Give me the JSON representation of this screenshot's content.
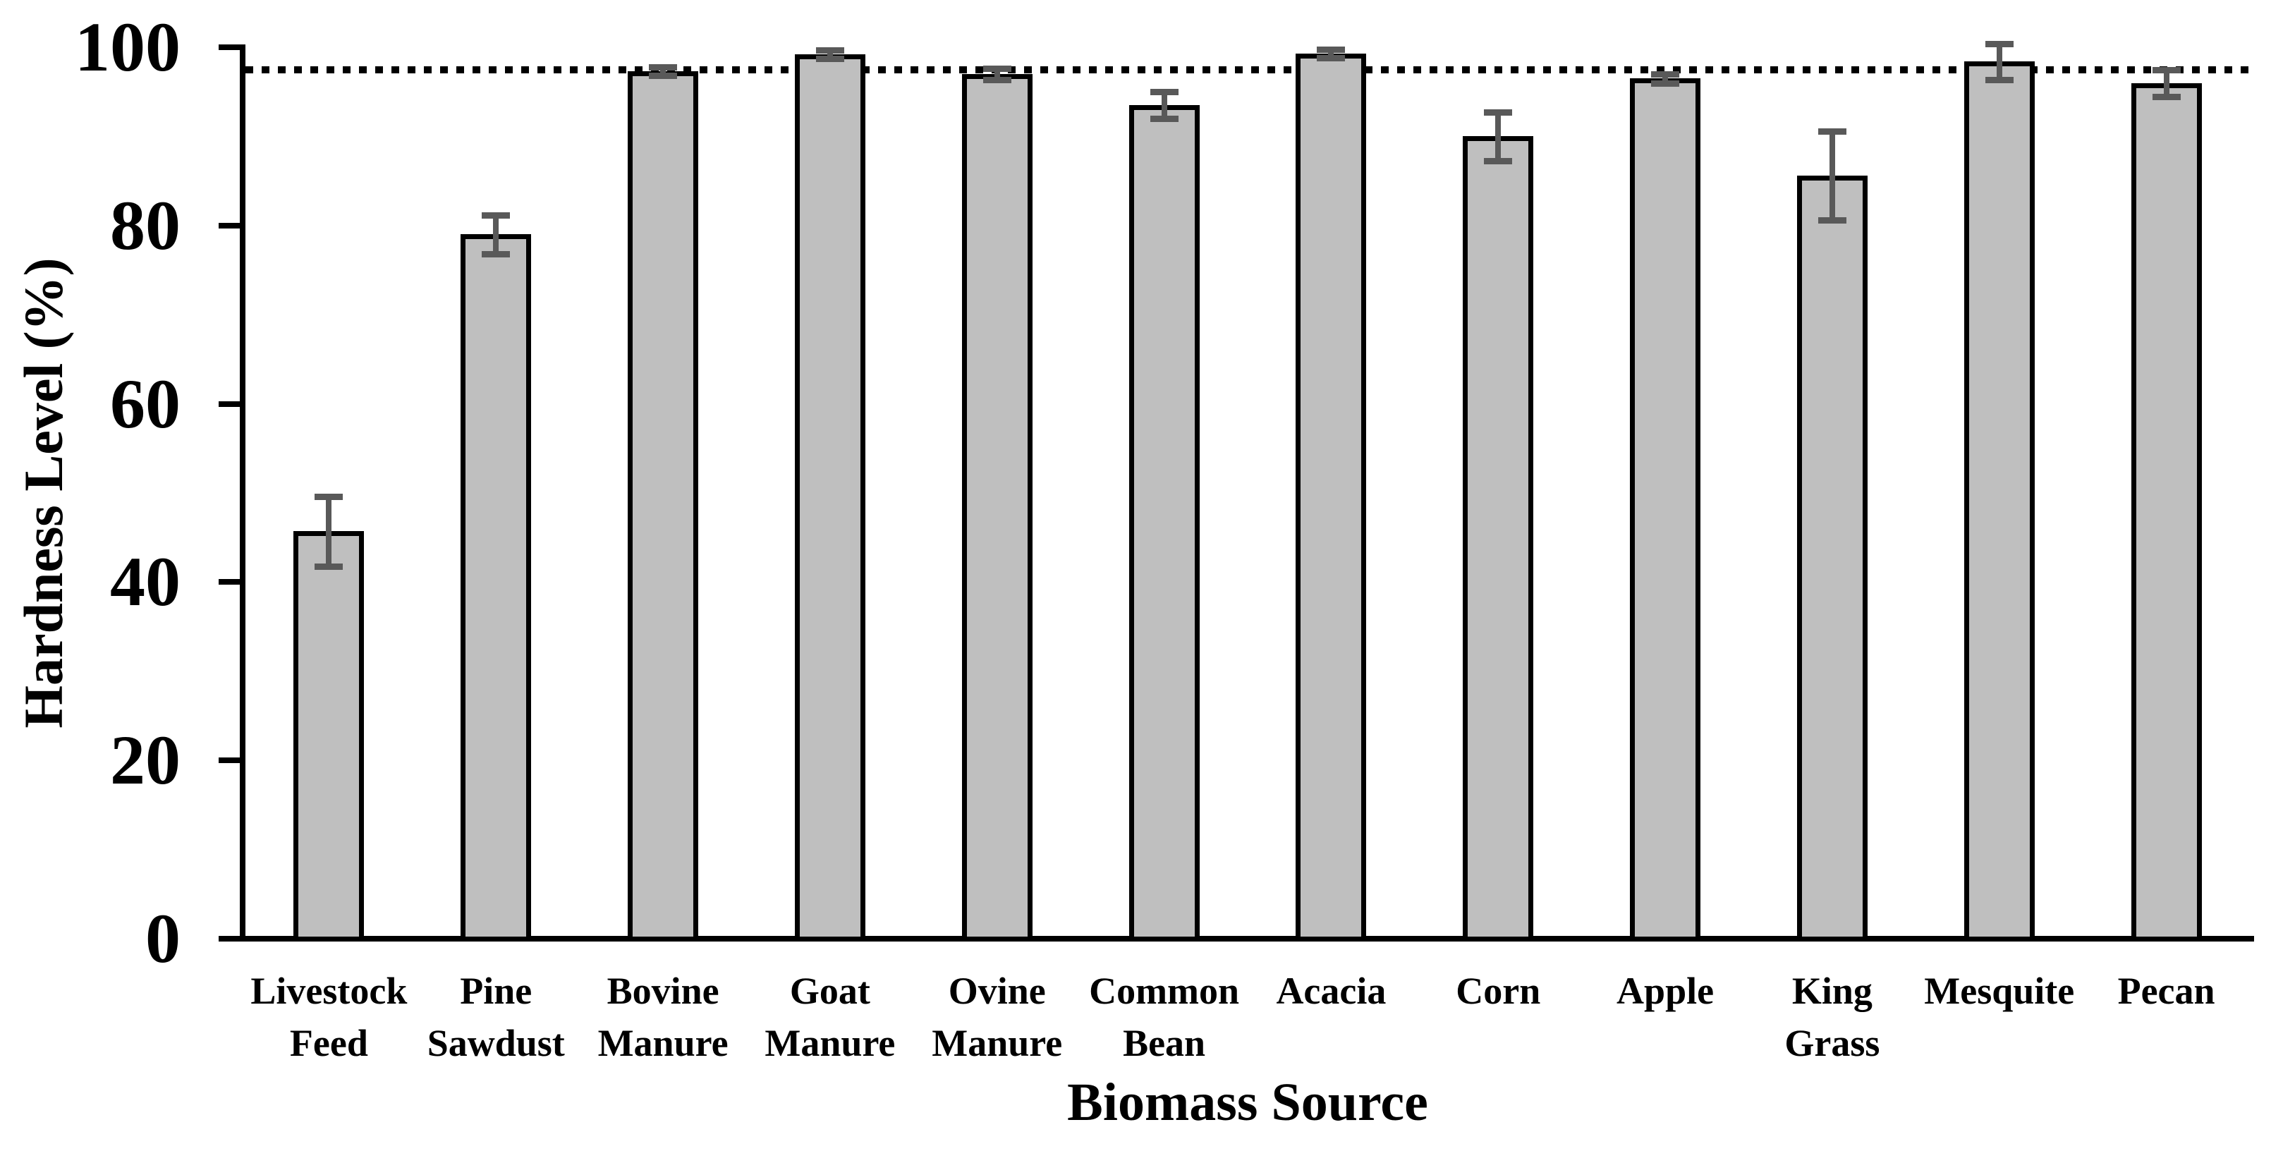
{
  "chart_data": {
    "type": "bar",
    "title": "",
    "xlabel": "Biomass Source",
    "ylabel": "Hardness Level (%)",
    "ylim": [
      0,
      100
    ],
    "yticks": [
      0,
      20,
      40,
      60,
      80,
      100
    ],
    "grid": false,
    "legend": null,
    "categories": [
      "Livestock Feed",
      "Pine Sawdust",
      "Bovine Manure",
      "Goat Manure",
      "Ovine Manure",
      "Common Bean",
      "Acacia",
      "Corn",
      "Apple",
      "King Grass",
      "Mesquite",
      "Pecan"
    ],
    "category_labels": [
      "Livestock\nFeed",
      "Pine\nSawdust",
      "Bovine\nManure",
      "Goat\nManure",
      "Ovine\nManure",
      "Common\nBean",
      "Acacia",
      "Corn",
      "Apple",
      "King\nGrass",
      "Mesquite",
      "Pecan"
    ],
    "values": [
      45.7,
      79.0,
      97.3,
      99.2,
      97.0,
      93.5,
      99.3,
      90.0,
      96.5,
      85.6,
      98.4,
      96.0
    ],
    "errors": [
      3.9,
      2.2,
      0.5,
      0.5,
      0.6,
      1.5,
      0.5,
      2.7,
      0.5,
      5.0,
      2.0,
      1.5
    ],
    "reference_line": 97.5,
    "colors": {
      "bar_fill": "#BFBFBF",
      "bar_border": "#000000",
      "error_bar": "#595959",
      "axis": "#000000",
      "reference_line": "#000000",
      "background": "#FFFFFF"
    },
    "error_bar_style": "plus-minus caps",
    "reference_line_style": "dotted"
  }
}
